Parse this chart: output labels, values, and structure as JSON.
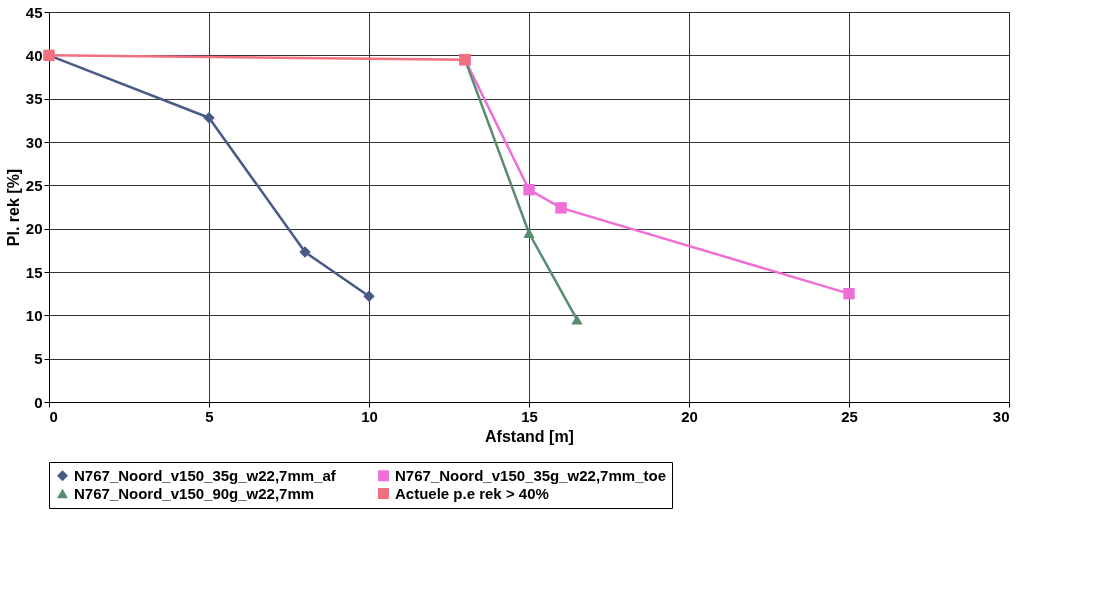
{
  "chart_data": {
    "type": "line",
    "xlabel": "Afstand [m]",
    "ylabel": "Pl. rek [%]",
    "xlim": [
      0,
      30
    ],
    "xticks": [
      0,
      5,
      10,
      15,
      20,
      25,
      30
    ],
    "ylim": [
      0,
      45
    ],
    "yticks": [
      0,
      5,
      10,
      15,
      20,
      25,
      30,
      35,
      40,
      45
    ],
    "grid": true,
    "legend": "bottom",
    "line_style": "solid",
    "series": [
      {
        "name": "N767_Noord_v150_35g_w22,7mm_af",
        "color": "#4a5a86",
        "marker": "diamond",
        "x": [
          0,
          5,
          8,
          10
        ],
        "values": [
          40,
          32.8,
          17.3,
          12.2
        ]
      },
      {
        "name": "N767_Noord_v150_35g_w22,7mm_toe",
        "color": "#f06fd6",
        "marker": "square",
        "x": [
          13,
          15,
          16,
          25
        ],
        "values": [
          39.5,
          24.5,
          22.4,
          12.5
        ]
      },
      {
        "name": "N767_Noord_v150_90g_w22,7mm",
        "color": "#5a8c6e",
        "marker": "triangle",
        "x": [
          13,
          15,
          16.5
        ],
        "values": [
          39.5,
          19.5,
          9.5
        ]
      },
      {
        "name": "Actuele p.e rek > 40%",
        "color": "#f07080",
        "marker": "square",
        "x": [
          0,
          13
        ],
        "values": [
          40,
          39.5
        ]
      }
    ]
  }
}
